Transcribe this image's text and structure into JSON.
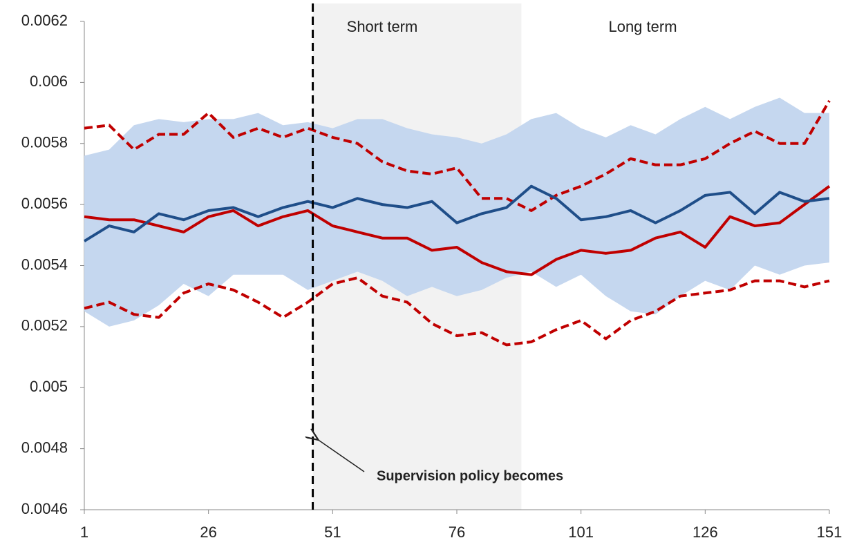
{
  "chart_data": {
    "type": "line",
    "x": [
      1,
      6,
      11,
      16,
      21,
      26,
      31,
      36,
      41,
      46,
      51,
      56,
      61,
      66,
      71,
      76,
      81,
      86,
      91,
      96,
      101,
      106,
      111,
      116,
      121,
      126,
      131,
      136,
      141,
      146,
      151
    ],
    "xlim": [
      1,
      151
    ],
    "xticks": [
      1,
      26,
      51,
      76,
      101,
      126,
      151
    ],
    "ylim": [
      0.0046,
      0.0062
    ],
    "yticks": [
      0.0046,
      0.0048,
      0.005,
      0.0052,
      0.0054,
      0.0056,
      0.0058,
      0.006,
      0.0062
    ],
    "band": {
      "color": "#c5d7ef",
      "upper": [
        0.00576,
        0.00578,
        0.00586,
        0.00588,
        0.00587,
        0.00588,
        0.00588,
        0.0059,
        0.00586,
        0.00587,
        0.00585,
        0.00588,
        0.00588,
        0.00585,
        0.00583,
        0.00582,
        0.0058,
        0.00583,
        0.00588,
        0.0059,
        0.00585,
        0.00582,
        0.00586,
        0.00583,
        0.00588,
        0.00592,
        0.00588,
        0.00592,
        0.00595,
        0.0059,
        0.0059
      ],
      "lower": [
        0.00525,
        0.0052,
        0.00522,
        0.00527,
        0.00534,
        0.0053,
        0.00537,
        0.00537,
        0.00537,
        0.00532,
        0.00535,
        0.00538,
        0.00535,
        0.0053,
        0.00533,
        0.0053,
        0.00532,
        0.00536,
        0.00538,
        0.00533,
        0.00537,
        0.0053,
        0.00525,
        0.00524,
        0.0053,
        0.00535,
        0.00532,
        0.0054,
        0.00537,
        0.0054,
        0.00541
      ]
    },
    "series": [
      {
        "color": "#c00000",
        "dashed": true,
        "values": [
          0.00585,
          0.00586,
          0.00578,
          0.00583,
          0.00583,
          0.0059,
          0.00582,
          0.00585,
          0.00582,
          0.00585,
          0.00582,
          0.0058,
          0.00574,
          0.00571,
          0.0057,
          0.00572,
          0.00562,
          0.00562,
          0.00558,
          0.00563,
          0.00566,
          0.0057,
          0.00575,
          0.00573,
          0.00573,
          0.00575,
          0.0058,
          0.00584,
          0.0058,
          0.0058,
          0.00594
        ]
      },
      {
        "color": "#c00000",
        "dashed": true,
        "values": [
          0.00526,
          0.00528,
          0.00524,
          0.00523,
          0.00531,
          0.00534,
          0.00532,
          0.00528,
          0.00523,
          0.00528,
          0.00534,
          0.00536,
          0.0053,
          0.00528,
          0.00521,
          0.00517,
          0.00518,
          0.00514,
          0.00515,
          0.00519,
          0.00522,
          0.00516,
          0.00522,
          0.00525,
          0.0053,
          0.00531,
          0.00532,
          0.00535,
          0.00535,
          0.00533,
          0.00535
        ]
      },
      {
        "color": "#c00000",
        "dashed": false,
        "values": [
          0.00556,
          0.00555,
          0.00555,
          0.00553,
          0.00551,
          0.00556,
          0.00558,
          0.00553,
          0.00556,
          0.00558,
          0.00553,
          0.00551,
          0.00549,
          0.00549,
          0.00545,
          0.00546,
          0.00541,
          0.00538,
          0.00537,
          0.00542,
          0.00545,
          0.00544,
          0.00545,
          0.00549,
          0.00551,
          0.00546,
          0.00556,
          0.00553,
          0.00554,
          0.0056,
          0.00566
        ]
      },
      {
        "color": "#1f4e89",
        "dashed": false,
        "values": [
          0.00548,
          0.00553,
          0.00551,
          0.00557,
          0.00555,
          0.00558,
          0.00559,
          0.00556,
          0.00559,
          0.00561,
          0.00559,
          0.00562,
          0.0056,
          0.00559,
          0.00561,
          0.00554,
          0.00557,
          0.00559,
          0.00566,
          0.00562,
          0.00555,
          0.00556,
          0.00558,
          0.00554,
          0.00558,
          0.00563,
          0.00564,
          0.00557,
          0.00564,
          0.00561,
          0.00562
        ]
      }
    ],
    "policy_x": 47,
    "shade": [
      47,
      89
    ],
    "short_term_label": "Short term",
    "long_term_label": "Long term",
    "annotation": "Supervision policy becomes"
  }
}
